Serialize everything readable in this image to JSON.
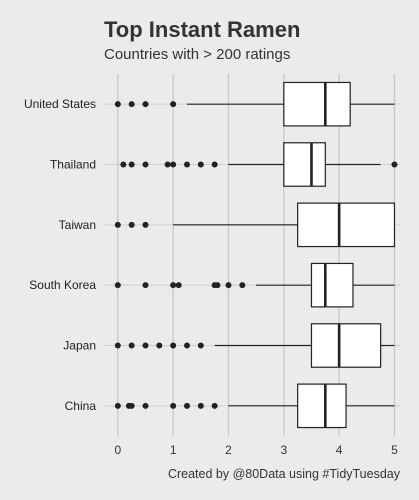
{
  "chart_data": {
    "type": "boxplot",
    "title": "Top Instant Ramen",
    "subtitle": "Countries with > 200 ratings",
    "caption": "Created by @80Data using #TidyTuesday",
    "xlim": [
      -0.25,
      5.1
    ],
    "x_ticks": [
      0,
      1,
      2,
      3,
      4,
      5
    ],
    "x_tick_labels": [
      "0",
      "1",
      "2",
      "3",
      "4",
      "5"
    ],
    "grid": true,
    "categories": [
      "United States",
      "Thailand",
      "Taiwan",
      "South Korea",
      "Japan",
      "China"
    ],
    "boxes": [
      {
        "category": "United States",
        "whisker_low": 1.25,
        "q1": 3.0,
        "median": 3.75,
        "q3": 4.2,
        "whisker_high": 5.0,
        "outliers": [
          0,
          0.25,
          0.5,
          1.0
        ]
      },
      {
        "category": "Thailand",
        "whisker_low": 2.0,
        "q1": 3.0,
        "median": 3.5,
        "q3": 3.75,
        "whisker_high": 4.75,
        "outliers": [
          0.1,
          0.25,
          0.5,
          0.9,
          1.0,
          1.25,
          1.5,
          1.75,
          5.0
        ]
      },
      {
        "category": "Taiwan",
        "whisker_low": 1.0,
        "q1": 3.25,
        "median": 4.0,
        "q3": 5.0,
        "whisker_high": 5.0,
        "outliers": [
          0,
          0.25,
          0.5
        ]
      },
      {
        "category": "South Korea",
        "whisker_low": 2.5,
        "q1": 3.5,
        "median": 3.75,
        "q3": 4.25,
        "whisker_high": 5.0,
        "outliers": [
          0,
          0.5,
          1.0,
          1.1,
          1.75,
          1.8,
          2.0,
          2.25
        ]
      },
      {
        "category": "Japan",
        "whisker_low": 1.75,
        "q1": 3.5,
        "median": 4.0,
        "q3": 4.75,
        "whisker_high": 5.0,
        "outliers": [
          0,
          0.25,
          0.5,
          0.75,
          1.0,
          1.25,
          1.5
        ]
      },
      {
        "category": "China",
        "whisker_low": 2.0,
        "q1": 3.25,
        "median": 3.75,
        "q3": 4.125,
        "whisker_high": 5.0,
        "outliers": [
          0,
          0.2,
          0.25,
          0.5,
          1.0,
          1.25,
          1.5,
          1.75
        ]
      }
    ]
  }
}
